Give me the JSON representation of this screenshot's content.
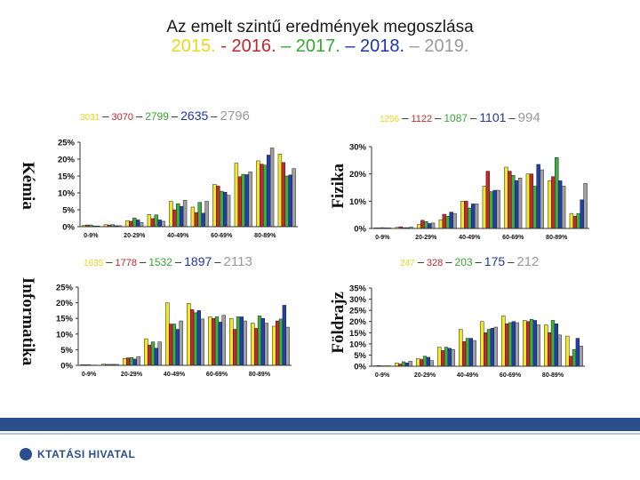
{
  "title": {
    "line1": "Az emelt szintű eredmények megoszlása",
    "years": [
      "2015.",
      "- 2016.",
      "– 2017.",
      "– 2018.",
      "– 2019."
    ]
  },
  "colors": [
    "#f2e82a",
    "#c62828",
    "#3cb043",
    "#1f3fb0",
    "#a0a0a0"
  ],
  "footer": {
    "logo_text": "KTATÁSI HIVATAL"
  },
  "chart_data": [
    {
      "type": "bar",
      "subject": "Kémia",
      "counts": [
        "3031",
        "3070",
        "2799",
        "2635",
        "2796"
      ],
      "categories": [
        "0-9%",
        "20-29%",
        "40-49%",
        "60-69%",
        "80-89%"
      ],
      "n_bins": 10,
      "ylim": [
        0,
        25
      ],
      "yticks": [
        "0%",
        "5%",
        "10%",
        "15%",
        "20%",
        "25%"
      ],
      "series_years": [
        "2015",
        "2016",
        "2017",
        "2018",
        "2019"
      ],
      "values": [
        [
          0.4,
          0.5,
          0.5,
          0.2,
          0.2
        ],
        [
          0.6,
          0.5,
          0.6,
          0.3,
          0.3
        ],
        [
          1.8,
          1.6,
          2.6,
          2.0,
          1.2
        ],
        [
          3.6,
          2.4,
          3.5,
          2.0,
          1.6
        ],
        [
          7.5,
          5.0,
          6.8,
          6.0,
          7.8
        ],
        [
          5.8,
          4.2,
          7.2,
          4.0,
          7.5
        ],
        [
          12.5,
          12.0,
          10.5,
          10.2,
          9.3
        ],
        [
          18.8,
          14.8,
          15.5,
          15.4,
          16.2
        ],
        [
          19.5,
          18.5,
          18.2,
          21.2,
          23.3
        ],
        [
          21.5,
          19.0,
          15.0,
          15.3,
          17.2
        ]
      ]
    },
    {
      "type": "bar",
      "subject": "Fizika",
      "counts": [
        "1256",
        "1122",
        "1087",
        "1101",
        "994"
      ],
      "categories": [
        "0-9%",
        "20-29%",
        "40-49%",
        "60-69%",
        "80-89%"
      ],
      "n_bins": 10,
      "ylim": [
        0,
        30
      ],
      "yticks": [
        "0%",
        "10%",
        "20%",
        "30%"
      ],
      "series_years": [
        "2015",
        "2016",
        "2017",
        "2018",
        "2019"
      ],
      "values": [
        [
          0.2,
          0.2,
          0.3,
          0.2,
          0.2
        ],
        [
          0.4,
          0.6,
          0.3,
          0.3,
          0.5
        ],
        [
          1.5,
          3.0,
          2.5,
          1.8,
          2.0
        ],
        [
          3.2,
          5.2,
          4.5,
          6.0,
          5.5
        ],
        [
          10.0,
          10.0,
          7.5,
          9.0,
          9.0
        ],
        [
          15.5,
          21.0,
          13.5,
          14.0,
          14.0
        ],
        [
          22.5,
          21.0,
          19.5,
          17.5,
          18.5
        ],
        [
          20.0,
          20.0,
          15.5,
          23.5,
          21.5
        ],
        [
          17.5,
          19.0,
          26.0,
          17.5,
          15.5
        ],
        [
          5.5,
          4.5,
          5.5,
          10.5,
          16.5
        ]
      ]
    },
    {
      "type": "bar",
      "subject": "Informatika",
      "counts": [
        "1635",
        "1778",
        "1532",
        "1897",
        "2113"
      ],
      "categories": [
        "0-9%",
        "20-29%",
        "40-49%",
        "60-69%",
        "80-89%"
      ],
      "n_bins": 10,
      "ylim": [
        0,
        25
      ],
      "yticks": [
        "0%",
        "5%",
        "10%",
        "15%",
        "20%",
        "25%"
      ],
      "series_years": [
        "2015",
        "2016",
        "2017",
        "2018",
        "2019"
      ],
      "values": [
        [
          0.2,
          0.2,
          0.2,
          0.1,
          0.1
        ],
        [
          0.4,
          0.3,
          0.3,
          0.3,
          0.3
        ],
        [
          2.2,
          2.4,
          2.5,
          2.0,
          2.8
        ],
        [
          8.5,
          6.5,
          7.5,
          5.5,
          7.5
        ],
        [
          20.0,
          13.2,
          13.2,
          11.5,
          14.2
        ],
        [
          19.8,
          17.8,
          16.8,
          17.5,
          14.8
        ],
        [
          15.5,
          15.0,
          15.5,
          13.8,
          16.0
        ],
        [
          15.0,
          11.5,
          15.5,
          15.5,
          14.2
        ],
        [
          13.5,
          11.8,
          15.8,
          15.0,
          13.5
        ],
        [
          12.5,
          14.2,
          14.8,
          19.2,
          12.2
        ]
      ]
    },
    {
      "type": "bar",
      "subject": "Földrajz",
      "counts": [
        "247",
        "328",
        "203",
        "175",
        "212"
      ],
      "categories": [
        "0-9%",
        "20-29%",
        "40-49%",
        "60-69%",
        "80-89%"
      ],
      "n_bins": 10,
      "ylim": [
        0,
        35
      ],
      "yticks": [
        "0%",
        "5%",
        "10%",
        "15%",
        "20%",
        "25%",
        "30%",
        "35%"
      ],
      "series_years": [
        "2015",
        "2016",
        "2017",
        "2018",
        "2019"
      ],
      "values": [
        [
          0.2,
          0.3,
          0.2,
          0.2,
          0.2
        ],
        [
          1.5,
          1.0,
          2.0,
          1.5,
          2.2
        ],
        [
          3.5,
          3.0,
          4.5,
          4.0,
          2.5
        ],
        [
          8.5,
          7.0,
          8.5,
          8.0,
          7.5
        ],
        [
          16.5,
          11.0,
          12.5,
          12.5,
          11.5
        ],
        [
          20.0,
          15.0,
          16.5,
          17.0,
          17.5
        ],
        [
          22.5,
          19.0,
          19.5,
          20.0,
          19.5
        ],
        [
          20.5,
          20.0,
          21.0,
          20.5,
          18.5
        ],
        [
          18.5,
          15.0,
          20.5,
          19.0,
          14.0
        ],
        [
          13.5,
          4.5,
          7.5,
          12.5,
          9.0
        ]
      ]
    }
  ]
}
